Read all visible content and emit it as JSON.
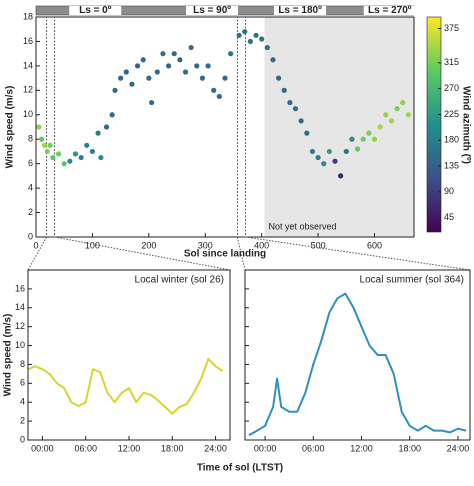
{
  "chart_data": [
    {
      "type": "scatter",
      "xlabel": "Sol since landing",
      "ylabel": "Wind speed (m/s)",
      "colorbar_label": "Wind azimuth (º)",
      "annotation": "Not yet observed",
      "not_observed_from": 405,
      "xlim": [
        0,
        670
      ],
      "xticks": [
        0,
        100,
        200,
        300,
        400,
        500,
        600
      ],
      "ylim": [
        0,
        18
      ],
      "yticks": [
        0,
        2,
        4,
        6,
        8,
        10,
        12,
        14,
        16,
        18
      ],
      "clim": [
        20,
        395
      ],
      "cticks": [
        45,
        90,
        135,
        180,
        225,
        270,
        315,
        375
      ],
      "season_markers": [
        {
          "value": 105,
          "label": "Ls = 0º"
        },
        {
          "value": 312,
          "label": "Ls = 90º"
        },
        {
          "value": 468,
          "label": "Ls = 180º"
        },
        {
          "value": 627,
          "label": "Ls = 270º"
        }
      ],
      "zoom_sols": [
        26,
        364
      ],
      "x": [
        5,
        10,
        15,
        20,
        25,
        30,
        40,
        50,
        60,
        70,
        80,
        90,
        100,
        110,
        115,
        125,
        135,
        140,
        150,
        160,
        170,
        180,
        190,
        200,
        205,
        215,
        225,
        235,
        245,
        255,
        265,
        275,
        285,
        295,
        305,
        315,
        325,
        335,
        345,
        360,
        370,
        380,
        390,
        400,
        410,
        420,
        430,
        440,
        450,
        460,
        470,
        480,
        490,
        500,
        510,
        520,
        530,
        540,
        550,
        560,
        570,
        580,
        590,
        600,
        610,
        620,
        630,
        640,
        650,
        660
      ],
      "values": [
        9,
        8,
        7.5,
        7,
        7.5,
        6.5,
        6.8,
        6,
        6.2,
        6.8,
        6.5,
        7.5,
        7,
        8.5,
        6.5,
        9,
        10,
        12,
        13,
        13.5,
        12.5,
        14,
        14.5,
        13,
        11,
        13.5,
        15,
        14,
        15,
        14.5,
        13.5,
        15.5,
        14,
        13,
        14,
        12,
        11.5,
        13,
        15,
        16.5,
        16.8,
        16,
        16.5,
        16.2,
        15.5,
        14.5,
        13,
        12,
        11,
        10.5,
        9.5,
        8.5,
        7,
        6.5,
        6,
        7,
        6.2,
        5,
        7,
        8,
        7.2,
        8,
        8.5,
        8,
        9,
        10,
        9.5,
        10.5,
        11,
        10
      ],
      "azimuth": [
        330,
        300,
        340,
        320,
        310,
        300,
        310,
        290,
        200,
        220,
        180,
        190,
        180,
        175,
        200,
        155,
        150,
        150,
        150,
        140,
        150,
        140,
        150,
        150,
        150,
        150,
        150,
        145,
        150,
        145,
        150,
        150,
        150,
        150,
        150,
        150,
        150,
        150,
        155,
        160,
        160,
        160,
        160,
        155,
        150,
        150,
        150,
        150,
        150,
        150,
        150,
        150,
        180,
        180,
        200,
        230,
        90,
        60,
        160,
        200,
        300,
        310,
        320,
        330,
        340,
        330,
        340,
        320,
        330,
        340
      ]
    },
    {
      "type": "line",
      "annotation": "Local winter (sol 26)",
      "ylabel": "Wind speed (m/s)",
      "xlim": [
        -2,
        26
      ],
      "xticks": [
        {
          "value": 0,
          "label": "00:00"
        },
        {
          "value": 6,
          "label": "06:00"
        },
        {
          "value": 12,
          "label": "12:00"
        },
        {
          "value": 18,
          "label": "18:00"
        },
        {
          "value": 24,
          "label": "24:00"
        }
      ],
      "ylim": [
        0,
        18
      ],
      "yticks": [
        0,
        2,
        4,
        6,
        8,
        10,
        12,
        14,
        16
      ],
      "series": [
        {
          "color": "#d6d62e",
          "x": [
            -2,
            -1,
            0,
            1,
            2,
            3,
            4,
            5,
            6,
            7,
            8,
            9,
            10,
            11,
            12,
            13,
            14,
            15,
            16,
            17,
            18,
            19,
            20,
            21,
            22,
            23,
            24,
            25
          ],
          "values": [
            7.5,
            7.8,
            7.5,
            7,
            6,
            5.5,
            4,
            3.6,
            4,
            7.5,
            7.2,
            5,
            4,
            5,
            5.5,
            4,
            5,
            4.8,
            4.2,
            3.5,
            2.8,
            3.5,
            3.8,
            5,
            6.5,
            8.6,
            7.8,
            7.3
          ]
        }
      ]
    },
    {
      "type": "line",
      "annotation": "Local summer (sol 364)",
      "xlabel": "Time of sol (LTST)",
      "xlim": [
        -2.5,
        25.5
      ],
      "xticks": [
        {
          "value": 0,
          "label": "00:00"
        },
        {
          "value": 6,
          "label": "06:00"
        },
        {
          "value": 12,
          "label": "12:00"
        },
        {
          "value": 18,
          "label": "18:00"
        },
        {
          "value": 24,
          "label": "24:00"
        }
      ],
      "ylim": [
        0,
        18
      ],
      "yticks": [
        0,
        2,
        4,
        6,
        8,
        10,
        12,
        14,
        16
      ],
      "series": [
        {
          "color": "#2e8fc0",
          "x": [
            -2,
            -1,
            0,
            1,
            1.5,
            2,
            3,
            4,
            5,
            6,
            7,
            8,
            9,
            10,
            11,
            12,
            13,
            14,
            15,
            16,
            17,
            18,
            19,
            20,
            21,
            22,
            23,
            24,
            25
          ],
          "values": [
            0.5,
            1,
            1.5,
            3.5,
            6.5,
            3.5,
            3,
            3,
            5,
            8,
            10.5,
            13.5,
            15,
            15.5,
            14,
            12,
            10,
            9,
            9,
            7,
            3,
            1.5,
            1,
            1.5,
            1,
            1,
            0.8,
            1.2,
            1
          ]
        }
      ]
    }
  ]
}
